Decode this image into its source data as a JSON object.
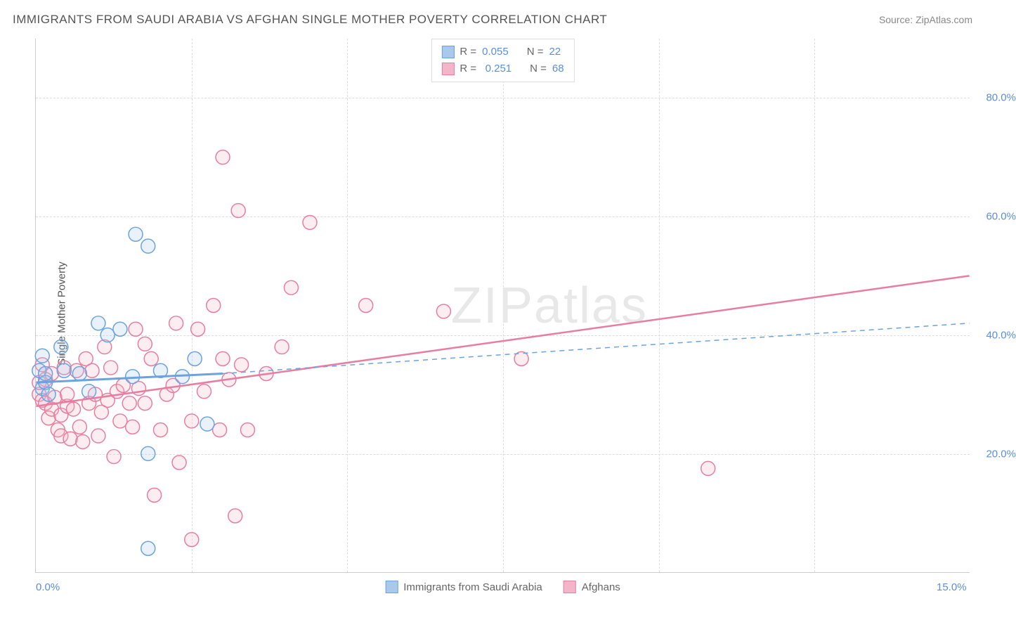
{
  "title": "IMMIGRANTS FROM SAUDI ARABIA VS AFGHAN SINGLE MOTHER POVERTY CORRELATION CHART",
  "source": "Source: ZipAtlas.com",
  "ylabel": "Single Mother Poverty",
  "watermark_prefix": "ZIP",
  "watermark_suffix": "atlas",
  "chart": {
    "type": "scatter",
    "background_color": "#ffffff",
    "grid_color": "#dddddd",
    "axis_color": "#cccccc",
    "tick_label_color": "#5b8fd6",
    "xlim": [
      0.0,
      15.0
    ],
    "ylim": [
      0.0,
      90.0
    ],
    "xticks": [
      {
        "value": 0.0,
        "label": "0.0%"
      },
      {
        "value": 15.0,
        "label": "15.0%"
      }
    ],
    "yticks": [
      {
        "value": 20.0,
        "label": "20.0%"
      },
      {
        "value": 40.0,
        "label": "40.0%"
      },
      {
        "value": 60.0,
        "label": "60.0%"
      },
      {
        "value": 80.0,
        "label": "80.0%"
      }
    ],
    "x_grid_values": [
      2.5,
      5.0,
      7.5,
      10.0,
      12.5
    ],
    "marker_radius": 10,
    "marker_fill_opacity": 0.25,
    "marker_stroke_width": 1.5,
    "series": [
      {
        "name": "Immigrants from Saudi Arabia",
        "R": "0.055",
        "N": "22",
        "color_stroke": "#6aa3e0",
        "color_fill": "#a9c9ec",
        "trend_line_style": "solid-then-dashed",
        "trend_solid": {
          "x1": 0.0,
          "y1": 32.0,
          "x2": 3.0,
          "y2": 33.5
        },
        "trend_dash": {
          "x1": 3.0,
          "y1": 33.5,
          "x2": 15.0,
          "y2": 42.0
        },
        "trend_width_solid": 3,
        "trend_width_dash": 1.5,
        "points": [
          [
            0.05,
            34
          ],
          [
            0.1,
            31
          ],
          [
            0.1,
            36.5
          ],
          [
            0.15,
            32
          ],
          [
            0.15,
            33.5
          ],
          [
            0.2,
            30
          ],
          [
            0.4,
            38
          ],
          [
            0.45,
            34
          ],
          [
            0.7,
            33.5
          ],
          [
            0.85,
            30.5
          ],
          [
            1.0,
            42
          ],
          [
            1.15,
            40
          ],
          [
            1.35,
            41
          ],
          [
            1.55,
            33
          ],
          [
            1.6,
            57
          ],
          [
            1.8,
            55
          ],
          [
            1.8,
            20
          ],
          [
            2.0,
            34
          ],
          [
            2.35,
            33
          ],
          [
            2.55,
            36
          ],
          [
            2.75,
            25
          ],
          [
            1.8,
            4
          ]
        ]
      },
      {
        "name": "Afghans",
        "R": "0.251",
        "N": "68",
        "color_stroke": "#e77ea2",
        "color_fill": "#f3b6c9",
        "trend_line_style": "solid",
        "trend_solid": {
          "x1": 0.0,
          "y1": 28.0,
          "x2": 15.0,
          "y2": 50.0
        },
        "trend_width_solid": 2.5,
        "points": [
          [
            0.05,
            30
          ],
          [
            0.05,
            32
          ],
          [
            0.1,
            29
          ],
          [
            0.1,
            35
          ],
          [
            0.15,
            32.5
          ],
          [
            0.15,
            28.5
          ],
          [
            0.2,
            26
          ],
          [
            0.25,
            27.5
          ],
          [
            0.25,
            33.5
          ],
          [
            0.3,
            29.5
          ],
          [
            0.35,
            24
          ],
          [
            0.4,
            23
          ],
          [
            0.4,
            26.5
          ],
          [
            0.45,
            34.5
          ],
          [
            0.5,
            28
          ],
          [
            0.5,
            30
          ],
          [
            0.55,
            22.5
          ],
          [
            0.6,
            27.5
          ],
          [
            0.65,
            34
          ],
          [
            0.7,
            24.5
          ],
          [
            0.75,
            22
          ],
          [
            0.8,
            36
          ],
          [
            0.85,
            28.5
          ],
          [
            0.9,
            34
          ],
          [
            0.95,
            30
          ],
          [
            1.0,
            23
          ],
          [
            1.05,
            27
          ],
          [
            1.1,
            38
          ],
          [
            1.15,
            29
          ],
          [
            1.2,
            34.5
          ],
          [
            1.25,
            19.5
          ],
          [
            1.3,
            30.5
          ],
          [
            1.35,
            25.5
          ],
          [
            1.4,
            31.5
          ],
          [
            1.5,
            28.5
          ],
          [
            1.55,
            24.5
          ],
          [
            1.6,
            41
          ],
          [
            1.65,
            31
          ],
          [
            1.75,
            38.5
          ],
          [
            1.75,
            28.5
          ],
          [
            1.85,
            36
          ],
          [
            1.9,
            13
          ],
          [
            2.0,
            24
          ],
          [
            2.1,
            30
          ],
          [
            2.2,
            31.5
          ],
          [
            2.25,
            42
          ],
          [
            2.3,
            18.5
          ],
          [
            2.5,
            25.5
          ],
          [
            2.5,
            5.5
          ],
          [
            2.6,
            41
          ],
          [
            2.7,
            30.5
          ],
          [
            2.85,
            45
          ],
          [
            2.95,
            24
          ],
          [
            3.0,
            36
          ],
          [
            3.0,
            70
          ],
          [
            3.1,
            32.5
          ],
          [
            3.2,
            9.5
          ],
          [
            3.25,
            61
          ],
          [
            3.3,
            35
          ],
          [
            3.4,
            24
          ],
          [
            3.7,
            33.5
          ],
          [
            3.95,
            38
          ],
          [
            4.1,
            48
          ],
          [
            4.4,
            59
          ],
          [
            5.3,
            45
          ],
          [
            6.55,
            44
          ],
          [
            7.8,
            36
          ],
          [
            10.8,
            17.5
          ]
        ]
      }
    ]
  },
  "legend_top": {
    "r_label": "R =",
    "n_label": "N ="
  },
  "legend_bottom_series1": "Immigrants from Saudi Arabia",
  "legend_bottom_series2": "Afghans"
}
